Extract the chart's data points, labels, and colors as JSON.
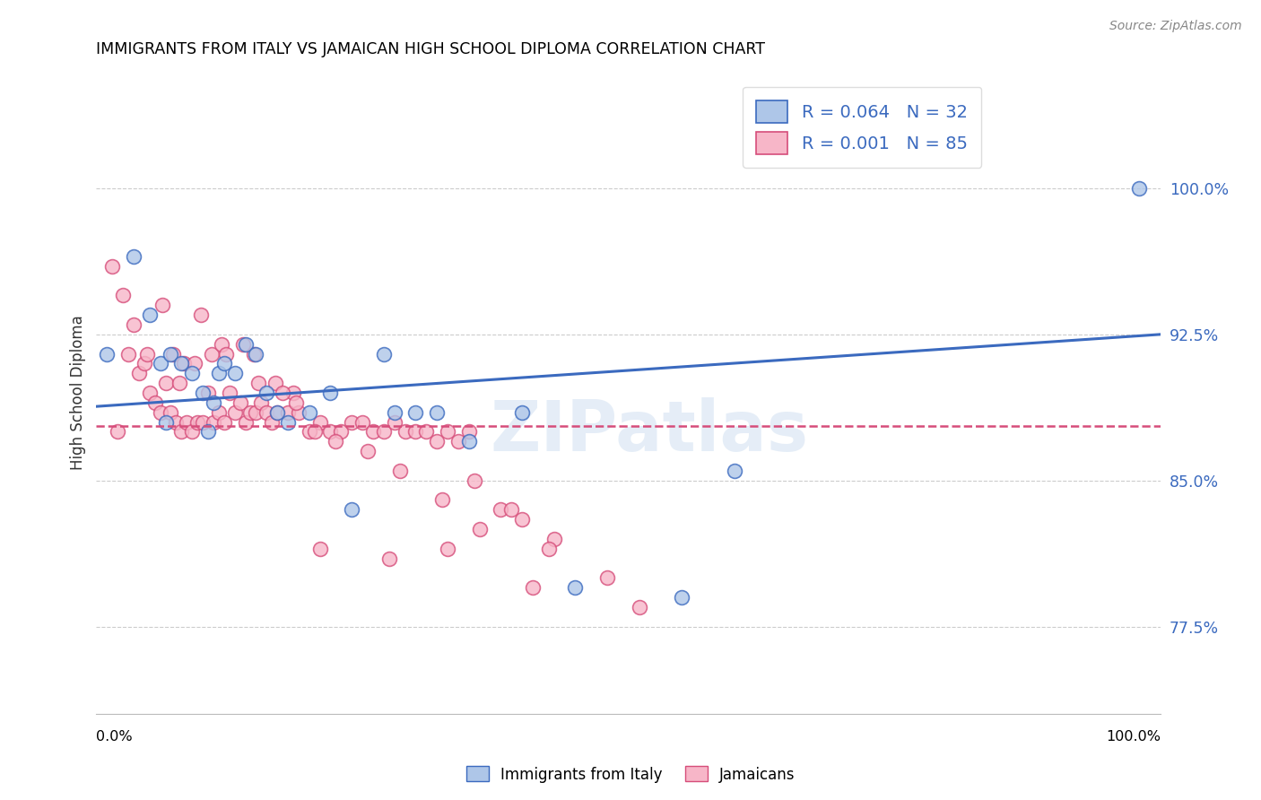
{
  "title": "IMMIGRANTS FROM ITALY VS JAMAICAN HIGH SCHOOL DIPLOMA CORRELATION CHART",
  "source": "Source: ZipAtlas.com",
  "ylabel": "High School Diploma",
  "yticks": [
    77.5,
    85.0,
    92.5,
    100.0
  ],
  "ytick_labels": [
    "77.5%",
    "85.0%",
    "92.5%",
    "100.0%"
  ],
  "xlim": [
    0.0,
    100.0
  ],
  "ylim": [
    73.0,
    106.0
  ],
  "legend_label1": "Immigrants from Italy",
  "legend_label2": "Jamaicans",
  "R1": "0.064",
  "N1": "32",
  "R2": "0.001",
  "N2": "85",
  "color1": "#aec6e8",
  "color2": "#f7b6c8",
  "trendline1_color": "#3b6abf",
  "trendline2_color": "#d64d7a",
  "watermark": "ZIPatlas",
  "blue_x": [
    1.0,
    3.5,
    5.0,
    6.0,
    7.0,
    8.0,
    9.0,
    10.0,
    11.0,
    11.5,
    12.0,
    13.0,
    14.0,
    15.0,
    16.0,
    17.0,
    18.0,
    20.0,
    22.0,
    24.0,
    27.0,
    28.0,
    30.0,
    32.0,
    35.0,
    40.0,
    45.0,
    55.0,
    60.0,
    98.0,
    6.5,
    10.5
  ],
  "blue_y": [
    91.5,
    96.5,
    93.5,
    91.0,
    91.5,
    91.0,
    90.5,
    89.5,
    89.0,
    90.5,
    91.0,
    90.5,
    92.0,
    91.5,
    89.5,
    88.5,
    88.0,
    88.5,
    89.5,
    83.5,
    91.5,
    88.5,
    88.5,
    88.5,
    87.0,
    88.5,
    79.5,
    79.0,
    85.5,
    100.0,
    88.0,
    87.5
  ],
  "pink_x": [
    1.5,
    2.5,
    3.0,
    4.0,
    4.5,
    5.0,
    5.5,
    6.0,
    6.5,
    7.0,
    7.5,
    8.0,
    8.5,
    9.0,
    9.5,
    10.0,
    10.5,
    11.0,
    11.5,
    12.0,
    12.5,
    13.0,
    13.5,
    14.0,
    14.5,
    15.0,
    15.5,
    16.0,
    16.5,
    17.0,
    18.0,
    18.5,
    19.0,
    20.0,
    21.0,
    22.0,
    23.0,
    24.0,
    25.0,
    26.0,
    27.0,
    28.0,
    29.0,
    30.0,
    31.0,
    32.0,
    33.0,
    34.0,
    35.0,
    3.5,
    6.2,
    7.2,
    8.2,
    9.8,
    10.8,
    11.8,
    13.8,
    14.8,
    16.8,
    18.8,
    4.8,
    7.8,
    9.2,
    12.2,
    15.2,
    17.5,
    20.5,
    22.5,
    25.5,
    28.5,
    32.5,
    35.5,
    38.0,
    40.0,
    43.0,
    48.0,
    21.0,
    27.5,
    33.0,
    36.0,
    39.0,
    41.0,
    42.5,
    51.0,
    2.0
  ],
  "pink_y": [
    96.0,
    94.5,
    91.5,
    90.5,
    91.0,
    89.5,
    89.0,
    88.5,
    90.0,
    88.5,
    88.0,
    87.5,
    88.0,
    87.5,
    88.0,
    88.0,
    89.5,
    88.0,
    88.5,
    88.0,
    89.5,
    88.5,
    89.0,
    88.0,
    88.5,
    88.5,
    89.0,
    88.5,
    88.0,
    88.5,
    88.5,
    89.5,
    88.5,
    87.5,
    88.0,
    87.5,
    87.5,
    88.0,
    88.0,
    87.5,
    87.5,
    88.0,
    87.5,
    87.5,
    87.5,
    87.0,
    87.5,
    87.0,
    87.5,
    93.0,
    94.0,
    91.5,
    91.0,
    93.5,
    91.5,
    92.0,
    92.0,
    91.5,
    90.0,
    89.0,
    91.5,
    90.0,
    91.0,
    91.5,
    90.0,
    89.5,
    87.5,
    87.0,
    86.5,
    85.5,
    84.0,
    85.0,
    83.5,
    83.0,
    82.0,
    80.0,
    81.5,
    81.0,
    81.5,
    82.5,
    83.5,
    79.5,
    81.5,
    78.5,
    87.5
  ]
}
